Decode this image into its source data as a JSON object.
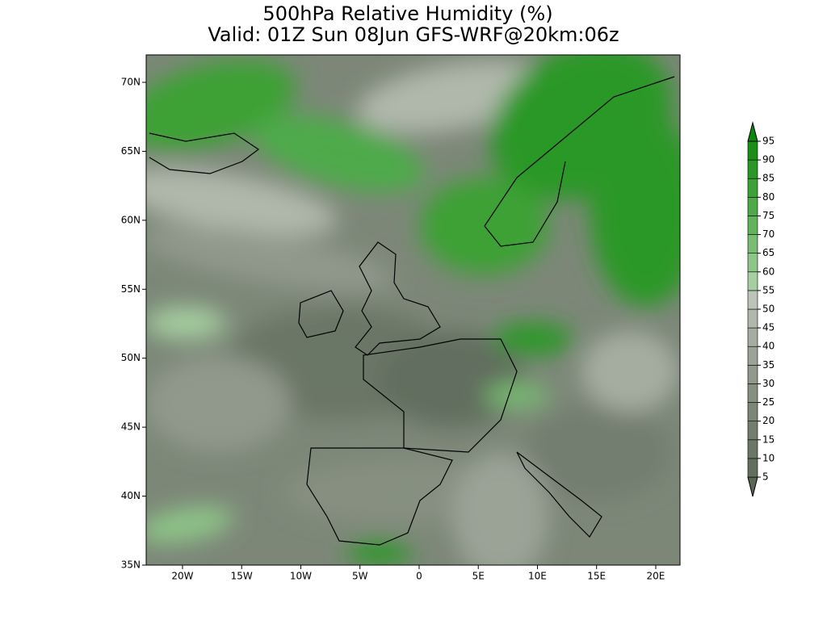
{
  "title": "500hPa Relative Humidity (%)",
  "subtitle": "Valid: 01Z Sun 08Jun GFS-WRF@20km:06z",
  "map": {
    "lon_range": [
      -23.07,
      22.05
    ],
    "lat_range": [
      35,
      71.99
    ],
    "lat_ticks": [
      {
        "value": 35,
        "label": "35N"
      },
      {
        "value": 40,
        "label": "40N"
      },
      {
        "value": 45,
        "label": "45N"
      },
      {
        "value": 50,
        "label": "50N"
      },
      {
        "value": 55,
        "label": "55N"
      },
      {
        "value": 60,
        "label": "60N"
      },
      {
        "value": 65,
        "label": "65N"
      },
      {
        "value": 70,
        "label": "70N"
      }
    ],
    "lon_ticks": [
      {
        "value": -20,
        "label": "20W"
      },
      {
        "value": -15,
        "label": "15W"
      },
      {
        "value": -10,
        "label": "10W"
      },
      {
        "value": -5,
        "label": "5W"
      },
      0,
      {
        "value": 5,
        "label": "5E"
      },
      {
        "value": 10,
        "label": "10E"
      },
      {
        "value": 15,
        "label": "15E"
      },
      {
        "value": 20,
        "label": "20E"
      }
    ]
  },
  "colorbar": {
    "levels": [
      5,
      10,
      15,
      20,
      25,
      30,
      35,
      40,
      45,
      50,
      55,
      60,
      65,
      70,
      75,
      80,
      85,
      90,
      95
    ],
    "colors": [
      "#5a6656",
      "#626e5e",
      "#6a7666",
      "#737e6f",
      "#7c8778",
      "#869081",
      "#90998b",
      "#9aa396",
      "#a5ada1",
      "#b0b8ac",
      "#bcc4b8",
      "#a6cfa0",
      "#8ec688",
      "#78bd72",
      "#62b35c",
      "#4eaa48",
      "#3ca136",
      "#2a9826",
      "#1a8f18",
      "#0c860c"
    ]
  }
}
